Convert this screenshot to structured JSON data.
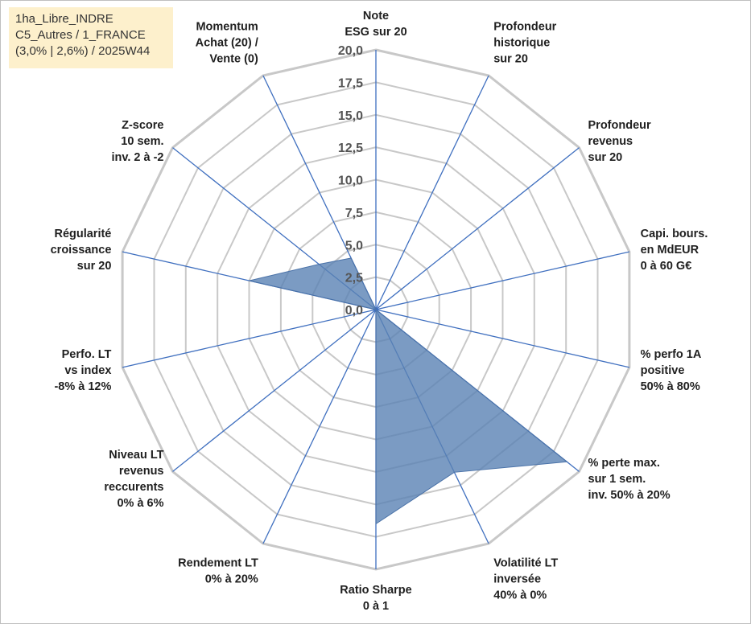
{
  "info_box": {
    "line1": "1ha_Libre_INDRE",
    "line2": "C5_Autres / 1_FRANCE",
    "line3": "(3,0% | 2,6%) / 2025W44"
  },
  "chart_data": {
    "type": "radar",
    "title": "",
    "rlim": [
      0,
      20
    ],
    "ticks": [
      "0,0",
      "2,5",
      "5,0",
      "7,5",
      "10,0",
      "12,5",
      "15,0",
      "17,5",
      "20,0"
    ],
    "grid": true,
    "categories": [
      [
        "Note",
        "ESG sur 20"
      ],
      [
        "Profondeur",
        "historique",
        "sur 20"
      ],
      [
        "Profondeur",
        "revenus",
        "sur 20"
      ],
      [
        "Capi. bours.",
        "en MdEUR",
        "0 à 60 G€"
      ],
      [
        "% perfo 1A",
        "positive",
        "50% à 80%"
      ],
      [
        "% perte max.",
        "sur 1 sem.",
        "inv. 50% à 20%"
      ],
      [
        "Volatilité LT",
        "inversée",
        "40% à 0%"
      ],
      [
        "Ratio Sharpe",
        "0 à 1"
      ],
      [
        "Rendement LT",
        "0% à 20%"
      ],
      [
        "Niveau LT",
        "revenus",
        "reccurents",
        "0% à 6%"
      ],
      [
        "Perfo. LT",
        "vs index",
        "-8% à 12%"
      ],
      [
        "Régularité",
        "croissance",
        "sur 20"
      ],
      [
        "Z-score",
        "10 sem.",
        "inv. 2 à -2"
      ],
      [
        "Momentum",
        "Achat (20) /",
        "Vente (0)"
      ]
    ],
    "series": [
      {
        "values": [
          0,
          0,
          0,
          0,
          0,
          18.8,
          13.9,
          16.5,
          0,
          0,
          0,
          10.0,
          5.6,
          4.4
        ]
      }
    ],
    "colors": {
      "fill": "#5a82b4",
      "fill_opacity": 0.8,
      "series_stroke": "#4a72a8",
      "grid_ring": "#c8c8c8",
      "spoke": "#3f6fbf"
    }
  }
}
